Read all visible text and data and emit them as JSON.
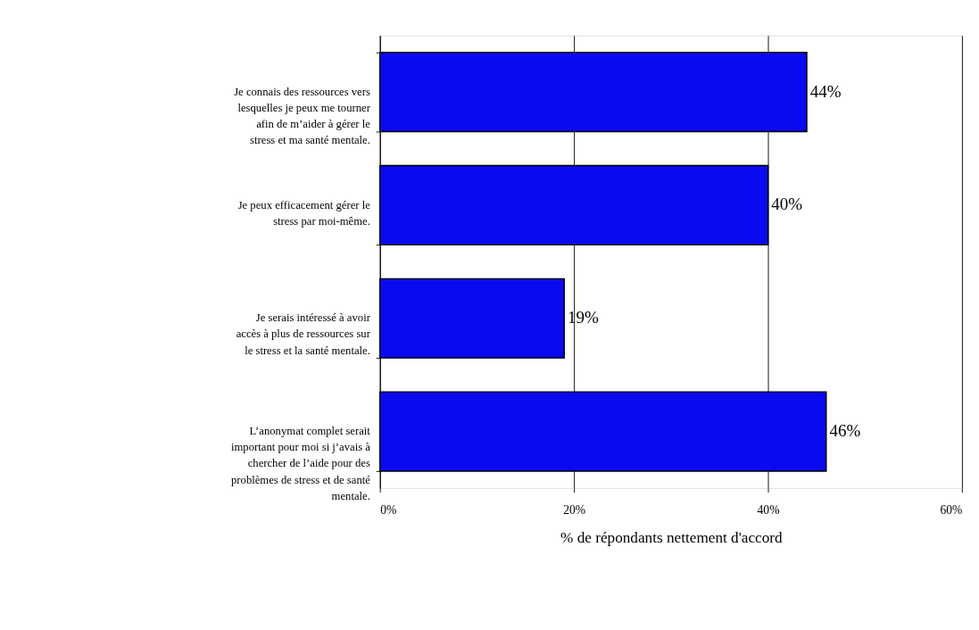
{
  "chart_data": {
    "type": "bar",
    "orientation": "horizontal",
    "categories": [
      "Je connais des ressources vers lesquelles je peux me tourner afin de m’aider à gérer le stress et ma santé mentale.",
      "Je peux efficacement gérer le stress par moi-même.",
      "Je serais intéressé à avoir accès à plus de ressources sur le stress et la santé mentale.",
      "L’anonymat complet serait important pour moi si j’avais à chercher de l’aide pour des problèmes de stress et de santé mentale."
    ],
    "values": [
      44,
      40,
      19,
      46
    ],
    "color": "#0a0af0",
    "xlim": [
      0,
      60
    ],
    "xticks": [
      {
        "value": 0,
        "label": "0%"
      },
      {
        "value": 20,
        "label": "20%"
      },
      {
        "value": 40,
        "label": "40%"
      },
      {
        "value": 60,
        "label": "60%"
      }
    ],
    "xlabel": "% de répondants nettement d'accord",
    "value_labels": [
      "44%",
      "40%",
      "19%",
      "46%"
    ],
    "grid": "x"
  }
}
